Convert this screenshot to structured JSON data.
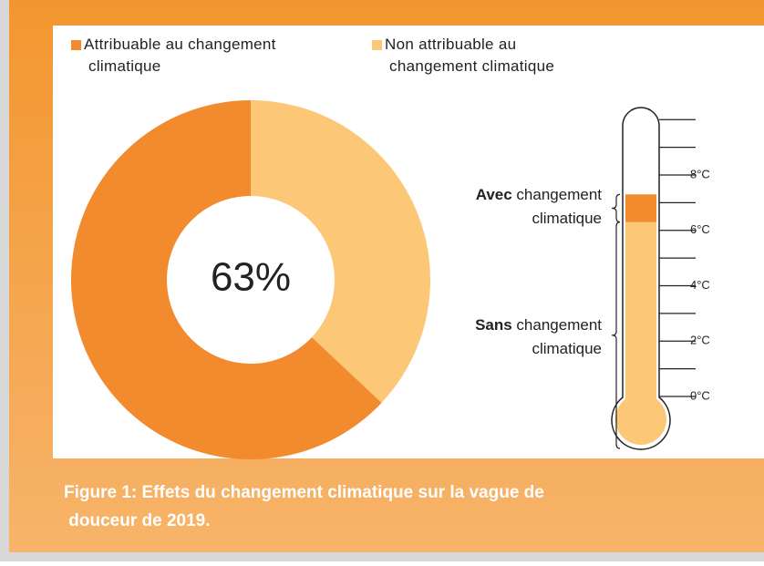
{
  "caption": "Figure 1: Effets du changement climatique sur la vague de douceur de 2019.",
  "chart_data": [
    {
      "type": "donut",
      "series": [
        {
          "name": "Attribuable au changement climatique",
          "color": "#f28a2e",
          "value": 63
        },
        {
          "name": "Non attribuable au changement climatique",
          "color": "#fcc878",
          "value": 37
        }
      ],
      "center_label": "63%"
    },
    {
      "type": "thermometer",
      "series": [
        {
          "name": "Sans changement climatique",
          "color": "#fcc878",
          "value": 6.3
        },
        {
          "name": "Avec changement climatique",
          "color": "#f28a2e",
          "value": 1.0
        }
      ],
      "ylim": [
        0,
        10.5
      ],
      "yticks": [
        {
          "value": 0,
          "label": "0°C"
        },
        {
          "value": 2,
          "label": "2°C"
        },
        {
          "value": 4,
          "label": "4°C"
        },
        {
          "value": 6,
          "label": "6°C"
        },
        {
          "value": 8,
          "label": "8°C"
        }
      ],
      "minor_yticks": [
        1,
        3,
        5,
        7,
        9,
        10
      ]
    }
  ]
}
